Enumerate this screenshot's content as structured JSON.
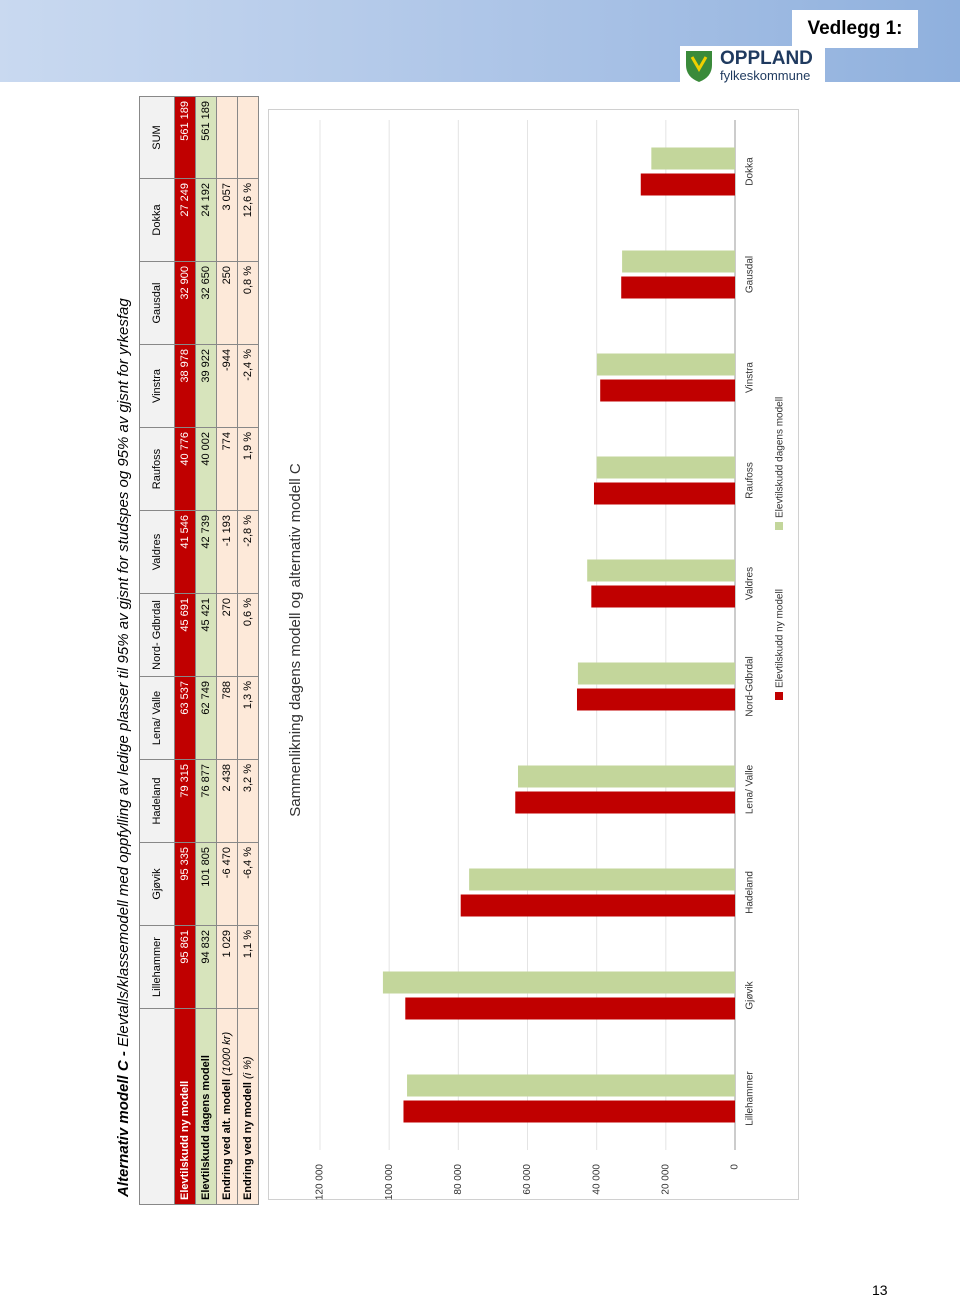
{
  "header": {
    "label": "Vedlegg 1:",
    "org": "OPPLAND",
    "suborg": "fylkeskommune"
  },
  "table": {
    "title_bold": "Alternativ modell C -",
    "title_rest": "Elevtalls/klassemodell med oppfylling av ledige plasser til 95% av gjsnt for studspes og 95% av gjsnt for yrkesfag",
    "columns": [
      "Lillehammer",
      "Gjøvik",
      "Hadeland",
      "Lena/ Valle",
      "Nord- Gdbrdal",
      "Valdres",
      "Raufoss",
      "Vinstra",
      "Gausdal",
      "Dokka",
      "SUM"
    ],
    "rows": [
      {
        "label": "Elevtilskudd ny modell",
        "cells": [
          "95 861",
          "95 335",
          "79 315",
          "63 537",
          "45 691",
          "41 546",
          "40 776",
          "38 978",
          "32 900",
          "27 249",
          "561 189"
        ]
      },
      {
        "label": "Elevtilskudd dagens modell",
        "cells": [
          "94 832",
          "101 805",
          "76 877",
          "62 749",
          "45 421",
          "42 739",
          "40 002",
          "39 922",
          "32 650",
          "24 192",
          "561 189"
        ]
      },
      {
        "label": "Endring ved alt. modell",
        "unit": "(1000 kr)",
        "cells": [
          "1 029",
          "-6 470",
          "2 438",
          "788",
          "270",
          "-1 193",
          "774",
          "-944",
          "250",
          "3 057"
        ]
      },
      {
        "label": "Endring ved ny modell",
        "unit": "(i %)",
        "cells": [
          "1,1 %",
          "-6,4 %",
          "3,2 %",
          "1,3 %",
          "0,6 %",
          "-2,8 %",
          "1,9 %",
          "-2,4 %",
          "0,8 %",
          "12,6 %"
        ]
      }
    ]
  },
  "chart_data": {
    "type": "bar",
    "title": "Sammenlikning dagens modell og alternativ modell C",
    "categories": [
      "Lillehammer",
      "Gjøvik",
      "Hadeland",
      "Lena/ Valle",
      "Nord-Gdbrdal",
      "Valdres",
      "Raufoss",
      "Vinstra",
      "Gausdal",
      "Dokka"
    ],
    "series": [
      {
        "name": "Elevtilskudd ny modell",
        "color": "#c00000",
        "values": [
          95861,
          95335,
          79315,
          63537,
          45691,
          41546,
          40776,
          38978,
          32900,
          27249
        ]
      },
      {
        "name": "Elevtilskudd dagens modell",
        "color": "#c3d69b",
        "values": [
          94832,
          101805,
          76877,
          62749,
          45421,
          42739,
          40002,
          39922,
          32650,
          24192
        ]
      }
    ],
    "ylim": [
      0,
      120000
    ],
    "yticks": [
      0,
      {
        "value": 20000,
        "label": "20 000"
      },
      {
        "value": 40000,
        "label": "40 000"
      },
      {
        "value": 60000,
        "label": "60 000"
      },
      {
        "value": 80000,
        "label": "80 000"
      },
      {
        "value": 100000,
        "label": "100 000"
      },
      {
        "value": 120000,
        "label": "120 000"
      }
    ],
    "grid": true,
    "legend": "bottom"
  },
  "page_number": "13"
}
